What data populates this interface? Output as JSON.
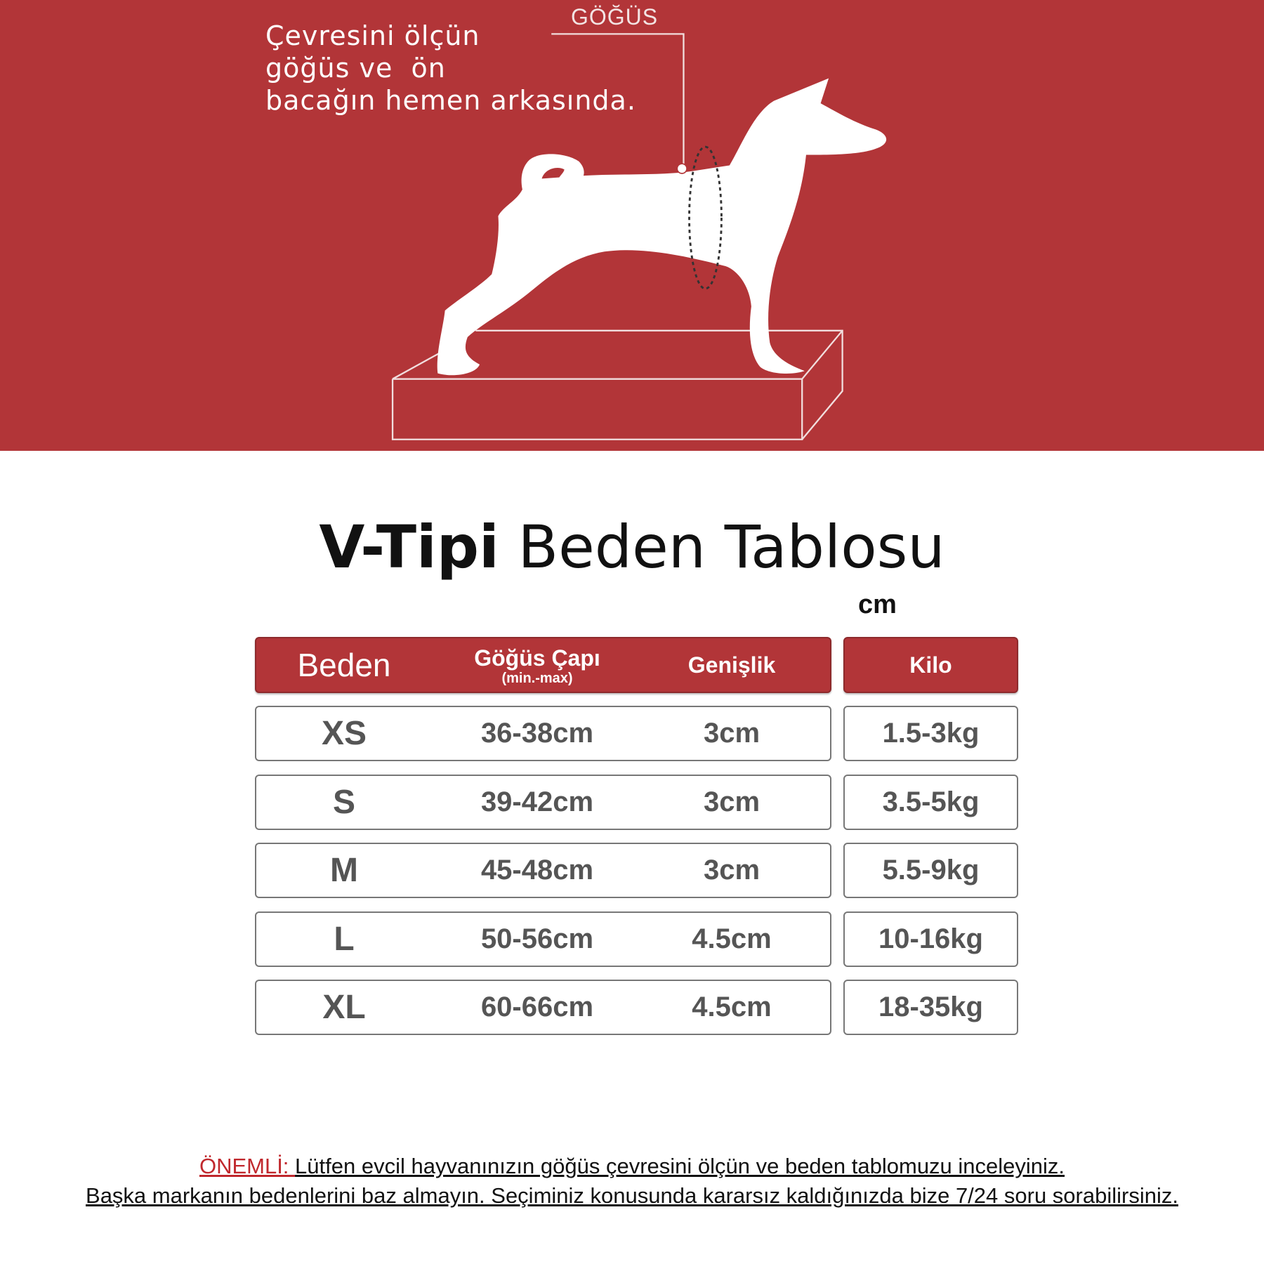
{
  "illustration": {
    "chest_label": "GÖĞÜS",
    "instruction_lines": [
      "Çevresini ölçün",
      "göğüs ve  ön",
      "bacağın hemen arkasında."
    ]
  },
  "title": {
    "bold": "V-Tipi",
    "regular": "Beden Tablosu"
  },
  "unit": "cm",
  "table": {
    "headers": {
      "size": "Beden",
      "chest": "Göğüs Çapı",
      "chest_sub": "(min.-max)",
      "width": "Genişlik",
      "weight": "Kilo"
    },
    "rows": [
      {
        "size": "XS",
        "chest": "36-38cm",
        "width": "3cm",
        "weight": "1.5-3kg"
      },
      {
        "size": "S",
        "chest": "39-42cm",
        "width": "3cm",
        "weight": "3.5-5kg"
      },
      {
        "size": "M",
        "chest": "45-48cm",
        "width": "3cm",
        "weight": "5.5-9kg"
      },
      {
        "size": "L",
        "chest": "50-56cm",
        "width": "4.5cm",
        "weight": "10-16kg"
      },
      {
        "size": "XL",
        "chest": "60-66cm",
        "width": "4.5cm",
        "weight": "18-35kg"
      }
    ]
  },
  "footer": {
    "important_label": "ÖNEMLİ: ",
    "line1": "Lütfen evcil hayvanınızın göğüs çevresini ölçün ve beden tablomuzu inceleyiniz.",
    "line2": "Başka markanın bedenlerini baz almayın. Seçiminiz konusunda kararsız kaldığınızda bize 7/24 soru sorabilirsiniz."
  },
  "colors": {
    "brand_red": "#b23538",
    "important_red": "#c0282d"
  }
}
